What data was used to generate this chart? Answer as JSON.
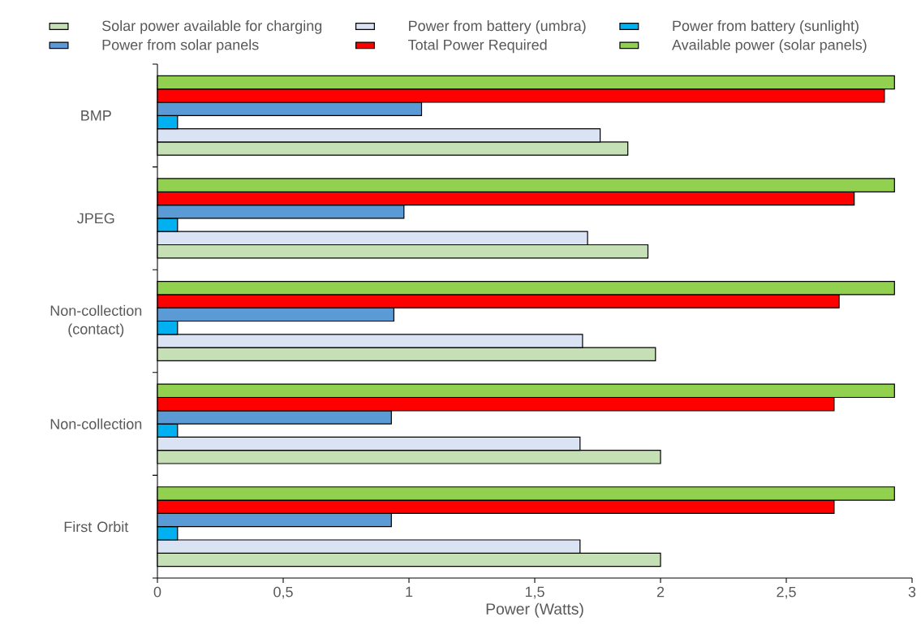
{
  "chart_data": {
    "type": "bar",
    "orientation": "horizontal",
    "xlabel": "Power (Watts)",
    "categories": [
      "BMP",
      "JPEG",
      "Non-collection (contact)",
      "Non-collection",
      "First Orbit"
    ],
    "series": [
      {
        "name": "Solar power available for charging",
        "color": "#c5e0b4",
        "values": [
          1.87,
          1.95,
          1.98,
          2.0,
          2.0
        ]
      },
      {
        "name": "Power from battery (umbra)",
        "color": "#dae3f3",
        "values": [
          1.76,
          1.71,
          1.69,
          1.68,
          1.68
        ]
      },
      {
        "name": "Power from battery (sunlight)",
        "color": "#00b0f0",
        "values": [
          0.08,
          0.08,
          0.08,
          0.08,
          0.08
        ]
      },
      {
        "name": "Power from solar panels",
        "color": "#5b9bd5",
        "values": [
          1.05,
          0.98,
          0.94,
          0.93,
          0.93
        ]
      },
      {
        "name": "Total Power Required",
        "color": "#ff0000",
        "values": [
          2.89,
          2.77,
          2.71,
          2.69,
          2.69
        ]
      },
      {
        "name": "Available power (solar panels)",
        "color": "#92d050",
        "values": [
          2.93,
          2.93,
          2.93,
          2.93,
          2.93
        ]
      }
    ],
    "xlim": [
      0,
      3
    ],
    "xticks": [
      0,
      {
        "value": 0.5,
        "label": "0,5"
      },
      1,
      {
        "value": 1.5,
        "label": "1,5"
      },
      2,
      {
        "value": 2.5,
        "label": "2,5"
      },
      3
    ],
    "grid": false,
    "legend": "top"
  }
}
